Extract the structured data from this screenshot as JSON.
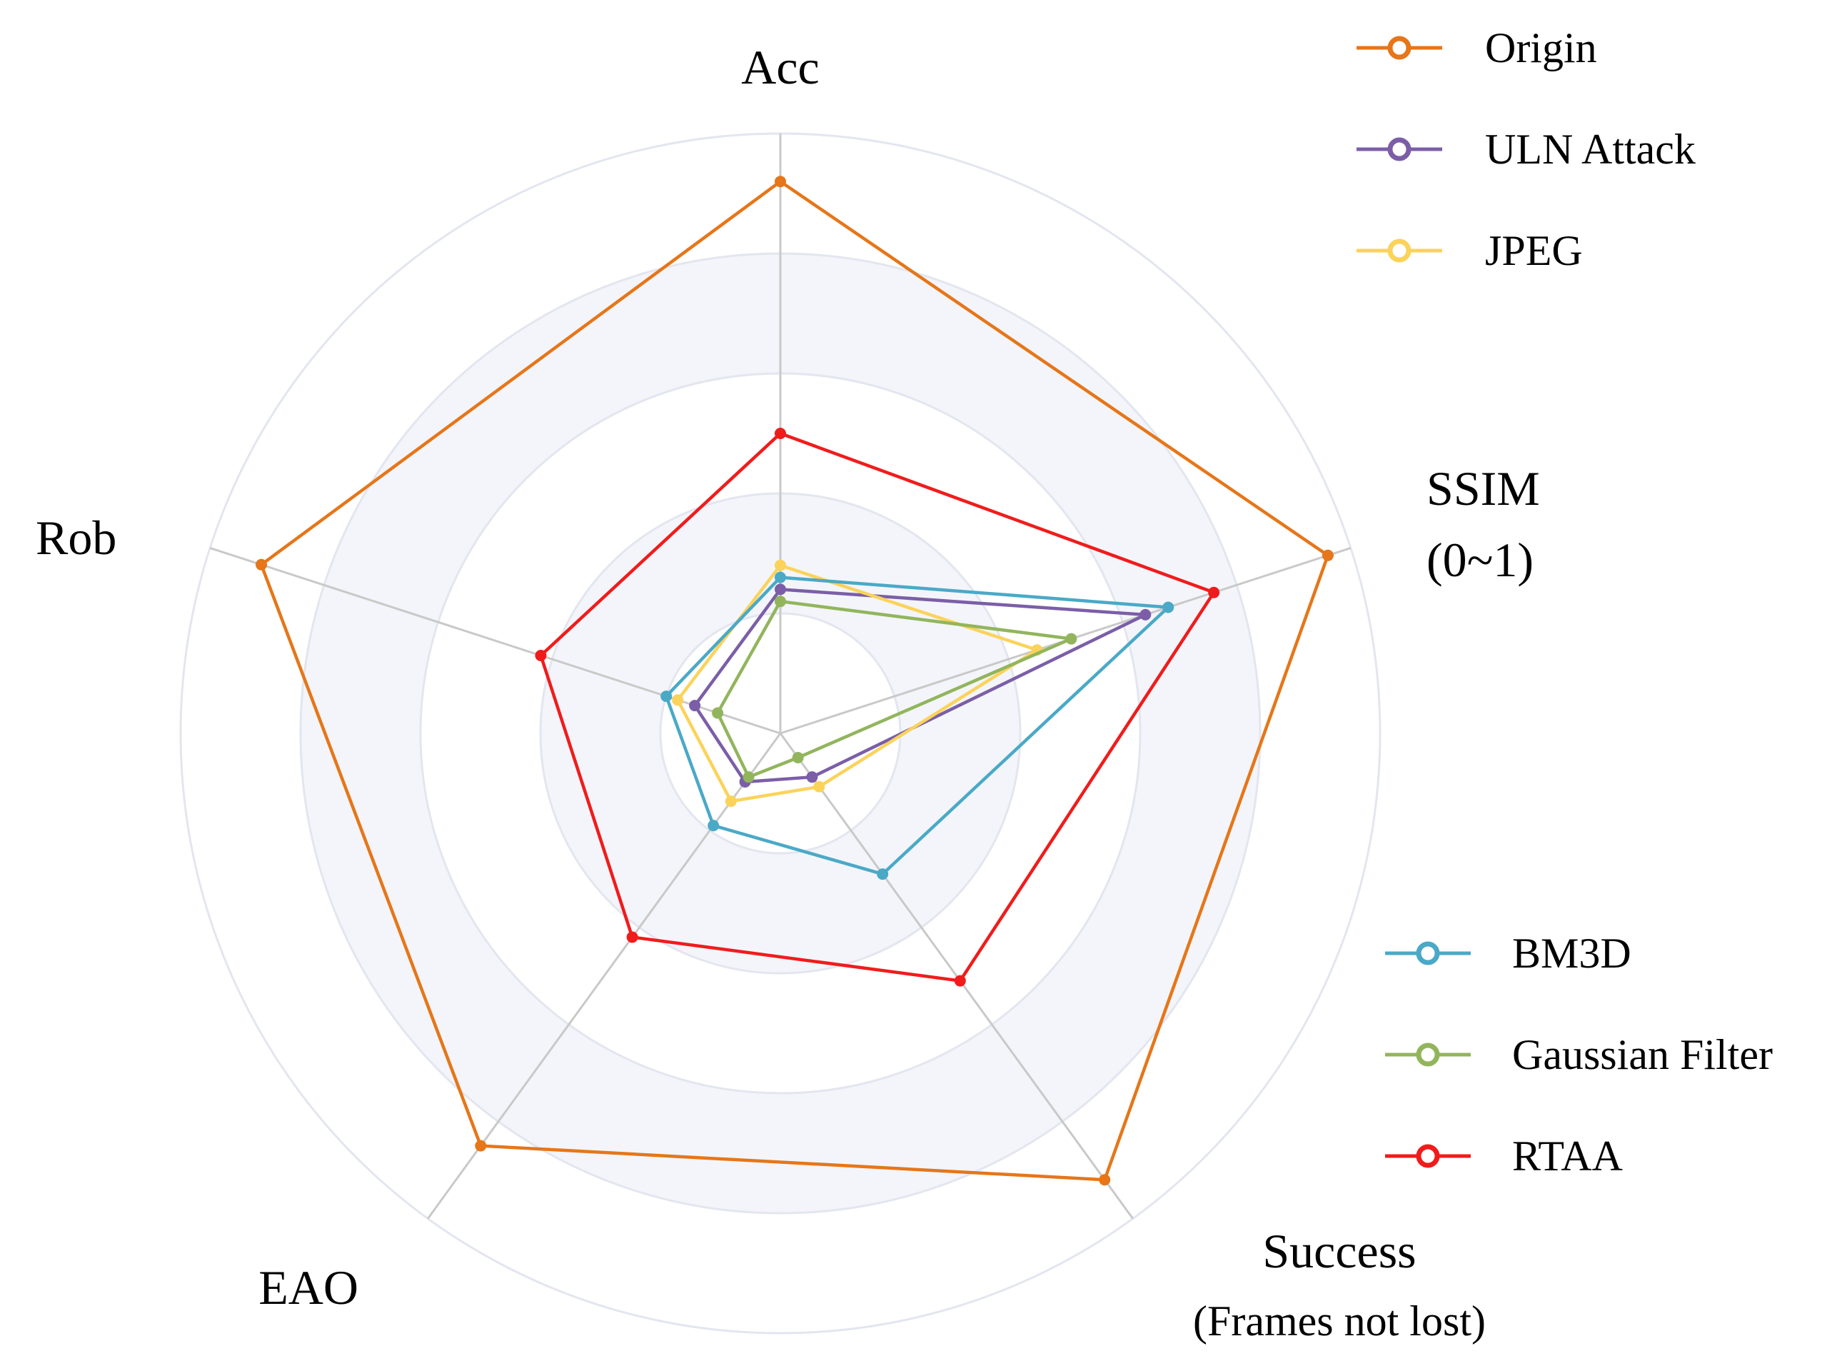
{
  "chart_data": {
    "type": "radar",
    "axes": [
      {
        "name": "Acc",
        "label_lines": [
          "Acc"
        ]
      },
      {
        "name": "SSIM (0~1)",
        "label_lines": [
          "SSIM",
          "(0~1)"
        ]
      },
      {
        "name": "Success (Frames not lost)",
        "label_lines": [
          "Success",
          "(Frames not lost)"
        ]
      },
      {
        "name": "EAO",
        "label_lines": [
          "EAO"
        ]
      },
      {
        "name": "Rob",
        "label_lines": [
          "Rob"
        ]
      }
    ],
    "range": [
      0,
      1
    ],
    "rings": [
      0.2,
      0.4,
      0.6,
      0.8,
      1.0
    ],
    "series": [
      {
        "name": "Origin",
        "color": "#e67619",
        "values": [
          0.92,
          0.96,
          0.92,
          0.85,
          0.91
        ]
      },
      {
        "name": "ULN Attack",
        "color": "#7b5ea7",
        "values": [
          0.24,
          0.64,
          0.09,
          0.1,
          0.15
        ]
      },
      {
        "name": "JPEG",
        "color": "#fbd35a",
        "values": [
          0.28,
          0.45,
          0.11,
          0.14,
          0.18
        ]
      },
      {
        "name": "BM3D",
        "color": "#4aa9c7",
        "values": [
          0.26,
          0.68,
          0.29,
          0.19,
          0.2
        ]
      },
      {
        "name": "Gaussian Filter",
        "color": "#92b55c",
        "values": [
          0.22,
          0.51,
          0.05,
          0.09,
          0.11
        ]
      },
      {
        "name": "RTAA",
        "color": "#f01c1c",
        "values": [
          0.5,
          0.76,
          0.51,
          0.42,
          0.42
        ]
      }
    ],
    "legend_groups": [
      {
        "position": "top-right",
        "series": [
          "Origin",
          "ULN Attack",
          "JPEG"
        ]
      },
      {
        "position": "bottom-right",
        "series": [
          "BM3D",
          "Gaussian Filter",
          "RTAA"
        ]
      }
    ],
    "grid": true
  }
}
